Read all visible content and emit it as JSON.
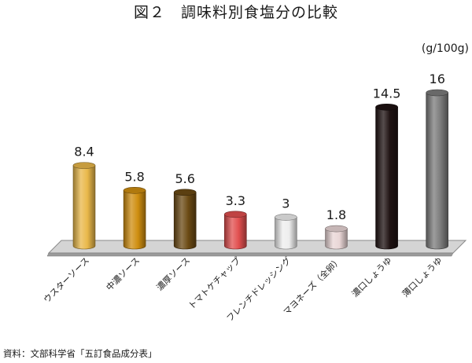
{
  "chart_data": {
    "type": "bar",
    "title": "図２　調味料別食塩分の比較",
    "unit": "(g/100g)",
    "categories": [
      "ウスターソース",
      "中濃ソース",
      "濃厚ソース",
      "トマトケチャップ",
      "フレンチドレッシング",
      "マヨネーズ（全卵）",
      "濃口しょうゆ",
      "薄口しょうゆ"
    ],
    "values": [
      8.4,
      5.8,
      5.6,
      3.3,
      3,
      1.8,
      14.5,
      16
    ],
    "value_labels": [
      "8.4",
      "5.8",
      "5.6",
      "3.3",
      "3",
      "1.8",
      "14.5",
      "16"
    ],
    "bar_colors": [
      "#e9b84a",
      "#cf8e10",
      "#6b4a14",
      "#e14f4f",
      "#eeeeee",
      "#e9d6d6",
      "#1e1212",
      "#7c7c7c"
    ],
    "ylim": [
      0,
      16
    ],
    "grid": false,
    "legend": "none",
    "source": "資料：文部科学省「五訂食品成分表」"
  }
}
